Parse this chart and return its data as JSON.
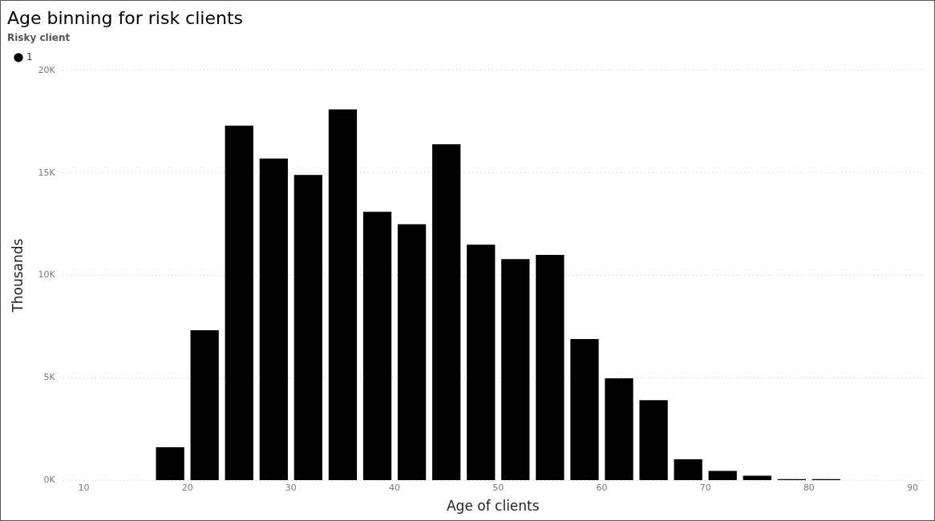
{
  "chart_data": {
    "type": "histogram",
    "title": "Age binning for risk clients",
    "xlabel": "Age of clients",
    "ylabel": "Thousands",
    "legend_title": "Risky client",
    "legend": "top left",
    "grid": "y",
    "bins": [
      16.67,
      20,
      23.33,
      26.67,
      30,
      33.33,
      36.67,
      40,
      43.33,
      46.67,
      50,
      53.33,
      56.67,
      60,
      63.33,
      66.67,
      70,
      73.33,
      76.67,
      80,
      83.33
    ],
    "series": [
      {
        "name": "1",
        "color": "#000000",
        "values": [
          1620,
          7330,
          17300,
          15700,
          14900,
          18100,
          13100,
          12500,
          16400,
          11500,
          10800,
          11000,
          6900,
          4980,
          3920,
          1030,
          470,
          230,
          60,
          60
        ]
      }
    ],
    "xlim": [
      8,
      91
    ],
    "xticks": [
      10,
      20,
      30,
      40,
      50,
      60,
      70,
      80,
      90
    ],
    "ylim": [
      0,
      20000
    ],
    "yticks": [
      {
        "value": 0,
        "label": "0K"
      },
      {
        "value": 5000,
        "label": "5K"
      },
      {
        "value": 10000,
        "label": "10K"
      },
      {
        "value": 15000,
        "label": "15K"
      },
      {
        "value": 20000,
        "label": "20K"
      }
    ]
  }
}
